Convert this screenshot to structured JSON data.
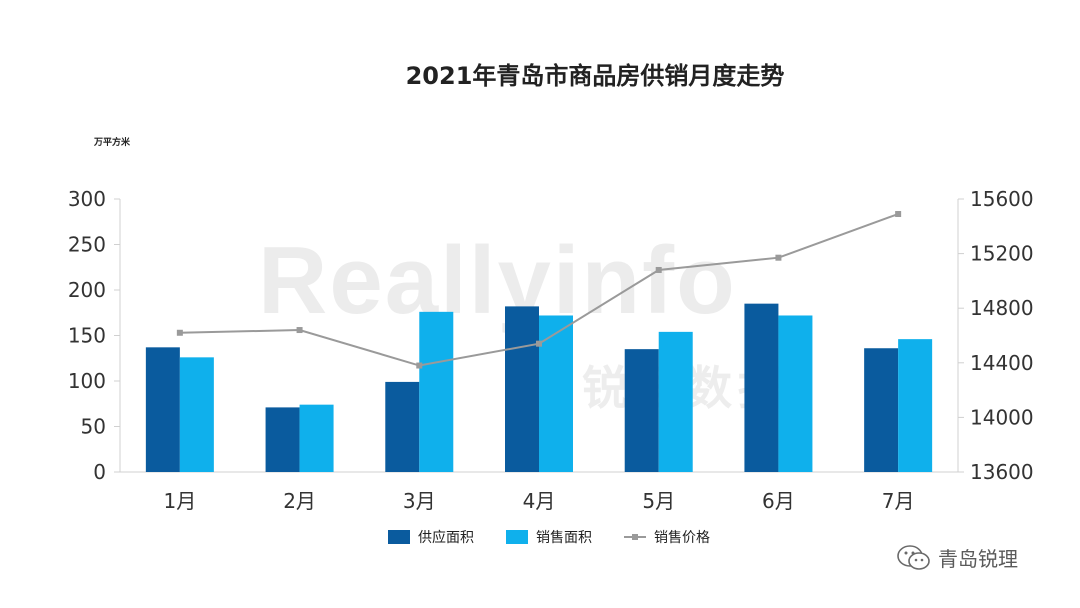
{
  "chart_data": {
    "type": "bar",
    "title": "2021年青岛市商品房供销月度走势",
    "unit_label": "万平方米",
    "categories": [
      "1月",
      "2月",
      "3月",
      "4月",
      "5月",
      "6月",
      "7月"
    ],
    "series": [
      {
        "name": "供应面积",
        "kind": "bar",
        "axis": "left",
        "color": "#0a5b9e",
        "values": [
          137,
          71,
          99,
          182,
          135,
          185,
          136
        ]
      },
      {
        "name": "销售面积",
        "kind": "bar",
        "axis": "left",
        "color": "#0fb0ec",
        "values": [
          126,
          74,
          176,
          172,
          154,
          172,
          146
        ]
      },
      {
        "name": "销售价格",
        "kind": "line",
        "axis": "right",
        "color": "#9a9a9a",
        "values": [
          14620,
          14640,
          14380,
          14540,
          15080,
          15170,
          15490
        ]
      }
    ],
    "y_left": {
      "min": 0,
      "max": 300,
      "ticks": [
        0,
        50,
        100,
        150,
        200,
        250,
        300
      ]
    },
    "y_right": {
      "min": 13600,
      "max": 15600,
      "ticks": [
        13600,
        14000,
        14400,
        14800,
        15200,
        15600
      ]
    },
    "grid": false,
    "legend_position": "bottom"
  },
  "watermark": {
    "text": "Reallyinfo",
    "text_cn": "锐理数据"
  },
  "brand": {
    "text": "青岛锐理",
    "icon": "wechat-icon"
  }
}
